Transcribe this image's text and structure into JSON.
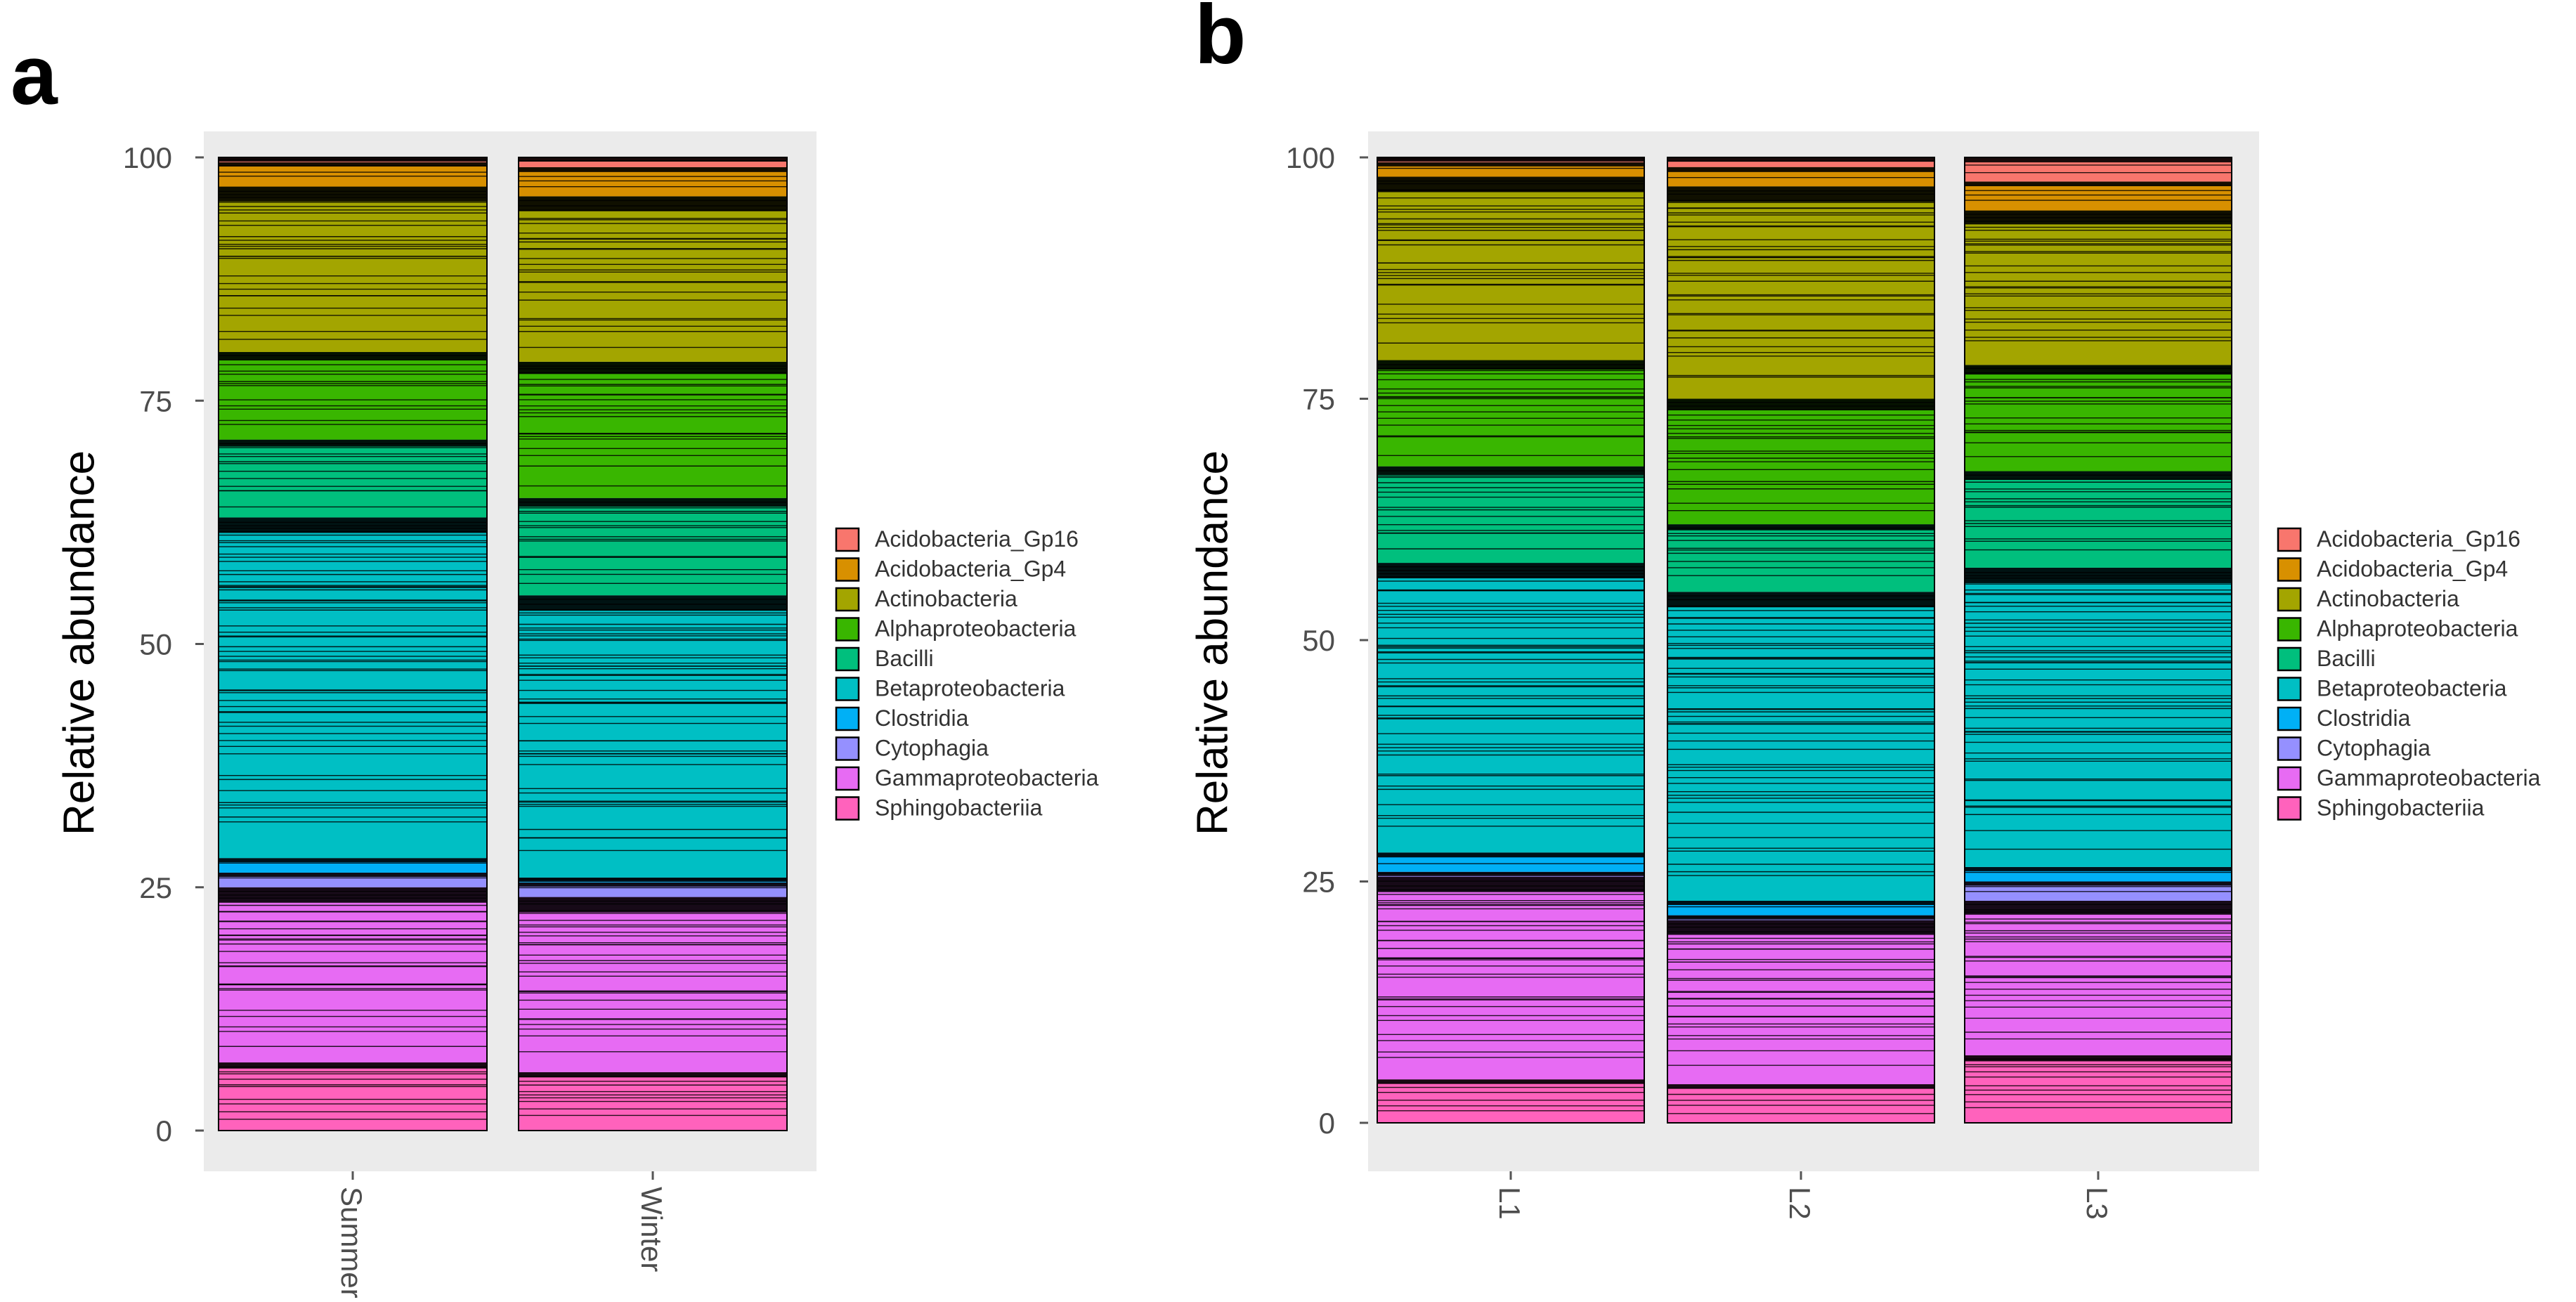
{
  "chart_data": [
    {
      "type": "bar",
      "stacked": true,
      "panel": "a",
      "title": "",
      "xlabel": "",
      "ylabel": "Relative abundance",
      "ylim": [
        0,
        100
      ],
      "yticks": [
        "0",
        "25",
        "50",
        "75",
        "100"
      ],
      "categories": [
        "Summer",
        "Winter"
      ],
      "legend": [
        "Acidobacteria_Gp16",
        "Acidobacteria_Gp4",
        "Actinobacteria",
        "Alphaproteobacteria",
        "Bacilli",
        "Betaproteobacteria",
        "Clostridia",
        "Cytophagia",
        "Gammaproteobacteria",
        "Sphingobacteriia"
      ],
      "colors": [
        "#F8766D",
        "#D89000",
        "#A3A500",
        "#39B600",
        "#00BF7D",
        "#00BFC4",
        "#00B0F6",
        "#9590FF",
        "#E76BF3",
        "#FF62BC"
      ],
      "series": [
        {
          "name": "Sphingobacteriia",
          "values": [
            7,
            6
          ]
        },
        {
          "name": "Gammaproteobacteria",
          "values": [
            18,
            18
          ]
        },
        {
          "name": "Cytophagia",
          "values": [
            1.5,
            1.5
          ]
        },
        {
          "name": "Clostridia",
          "values": [
            1.5,
            0.5
          ]
        },
        {
          "name": "Betaproteobacteria",
          "values": [
            35,
            29
          ]
        },
        {
          "name": "Bacilli",
          "values": [
            8,
            10
          ]
        },
        {
          "name": "Alphaproteobacteria",
          "values": [
            9,
            14
          ]
        },
        {
          "name": "Actinobacteria",
          "values": [
            17,
            17
          ]
        },
        {
          "name": "Acidobacteria_Gp4",
          "values": [
            2.5,
            3
          ]
        },
        {
          "name": "Acidobacteria_Gp16",
          "values": [
            0.5,
            1
          ]
        }
      ]
    },
    {
      "type": "bar",
      "stacked": true,
      "panel": "b",
      "title": "",
      "xlabel": "",
      "ylabel": "Relative abundance",
      "ylim": [
        0,
        100
      ],
      "yticks": [
        "0",
        "25",
        "50",
        "75",
        "100"
      ],
      "categories": [
        "L1",
        "L2",
        "L3"
      ],
      "legend": [
        "Acidobacteria_Gp16",
        "Acidobacteria_Gp4",
        "Actinobacteria",
        "Alphaproteobacteria",
        "Bacilli",
        "Betaproteobacteria",
        "Clostridia",
        "Cytophagia",
        "Gammaproteobacteria",
        "Sphingobacteriia"
      ],
      "colors": [
        "#F8766D",
        "#D89000",
        "#A3A500",
        "#39B600",
        "#00BF7D",
        "#00BFC4",
        "#00B0F6",
        "#9590FF",
        "#E76BF3",
        "#FF62BC"
      ],
      "series": [
        {
          "name": "Sphingobacteriia",
          "values": [
            4.5,
            4,
            7
          ]
        },
        {
          "name": "Gammaproteobacteria",
          "values": [
            21,
            17,
            16
          ]
        },
        {
          "name": "Cytophagia",
          "values": [
            0.5,
            0.5,
            2
          ]
        },
        {
          "name": "Clostridia",
          "values": [
            2,
            1.5,
            1.5
          ]
        },
        {
          "name": "Betaproteobacteria",
          "values": [
            30,
            32,
            31
          ]
        },
        {
          "name": "Bacilli",
          "values": [
            10,
            7,
            10
          ]
        },
        {
          "name": "Alphaproteobacteria",
          "values": [
            11,
            13,
            11
          ]
        },
        {
          "name": "Actinobacteria",
          "values": [
            19,
            22,
            16
          ]
        },
        {
          "name": "Acidobacteria_Gp4",
          "values": [
            1.5,
            2,
            3
          ]
        },
        {
          "name": "Acidobacteria_Gp16",
          "values": [
            0.5,
            1,
            2.5
          ]
        }
      ]
    }
  ]
}
